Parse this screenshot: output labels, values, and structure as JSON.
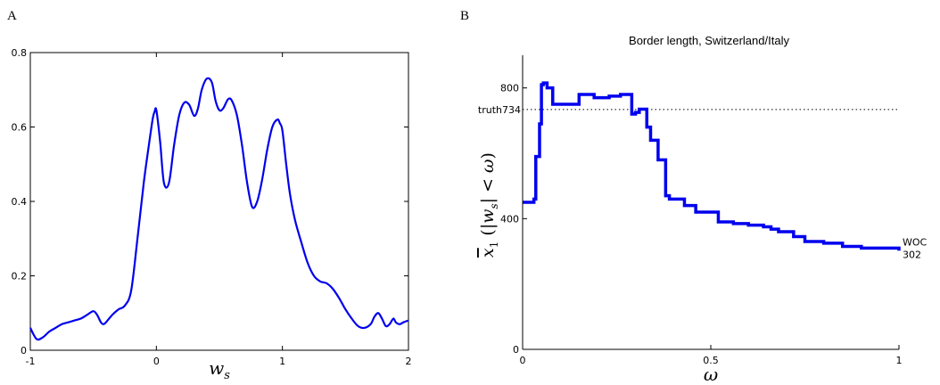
{
  "panel_letters": [
    "A",
    "B"
  ],
  "chart_data": [
    {
      "type": "line",
      "panel": "A",
      "title": "",
      "xlabel": "w_s",
      "ylabel": "",
      "xlim": [
        -1,
        2
      ],
      "ylim": [
        0,
        0.8
      ],
      "xticks": [
        "-1",
        "0",
        "1",
        "2"
      ],
      "yticks": [
        "0",
        "0.2",
        "0.4",
        "0.6",
        "0.8"
      ],
      "series": [
        {
          "color": "#0000ee",
          "x": [
            -1.0,
            -0.95,
            -0.9,
            -0.85,
            -0.8,
            -0.75,
            -0.7,
            -0.65,
            -0.6,
            -0.55,
            -0.5,
            -0.47,
            -0.44,
            -0.42,
            -0.4,
            -0.35,
            -0.3,
            -0.25,
            -0.2,
            -0.15,
            -0.1,
            -0.06,
            -0.03,
            -0.015,
            0.0,
            0.03,
            0.06,
            0.1,
            0.14,
            0.18,
            0.22,
            0.26,
            0.3,
            0.33,
            0.36,
            0.4,
            0.44,
            0.47,
            0.5,
            0.53,
            0.57,
            0.6,
            0.64,
            0.68,
            0.72,
            0.76,
            0.8,
            0.84,
            0.88,
            0.92,
            0.96,
            0.98,
            1.0,
            1.03,
            1.06,
            1.1,
            1.15,
            1.2,
            1.25,
            1.3,
            1.35,
            1.4,
            1.45,
            1.5,
            1.55,
            1.6,
            1.65,
            1.7,
            1.73,
            1.76,
            1.79,
            1.82,
            1.85,
            1.88,
            1.9,
            1.93,
            1.96,
            2.0
          ],
          "y": [
            0.06,
            0.03,
            0.035,
            0.05,
            0.06,
            0.07,
            0.075,
            0.08,
            0.085,
            0.095,
            0.105,
            0.095,
            0.075,
            0.07,
            0.075,
            0.095,
            0.11,
            0.12,
            0.16,
            0.3,
            0.45,
            0.55,
            0.62,
            0.64,
            0.645,
            0.56,
            0.45,
            0.45,
            0.55,
            0.63,
            0.665,
            0.66,
            0.63,
            0.65,
            0.7,
            0.73,
            0.72,
            0.67,
            0.645,
            0.65,
            0.675,
            0.67,
            0.63,
            0.55,
            0.45,
            0.385,
            0.4,
            0.46,
            0.54,
            0.6,
            0.62,
            0.61,
            0.59,
            0.5,
            0.42,
            0.35,
            0.29,
            0.235,
            0.2,
            0.185,
            0.18,
            0.165,
            0.14,
            0.11,
            0.085,
            0.065,
            0.06,
            0.07,
            0.09,
            0.1,
            0.085,
            0.065,
            0.07,
            0.085,
            0.075,
            0.07,
            0.075,
            0.08
          ]
        }
      ]
    },
    {
      "type": "line",
      "panel": "B",
      "title": "Border length, Switzerland/Italy",
      "xlabel": "ω",
      "ylabel": "x̄₁ (|w_s| < ω)",
      "xlim": [
        0,
        1
      ],
      "ylim": [
        0,
        900
      ],
      "xticks": [
        "0",
        "0.5",
        "1"
      ],
      "yticks": [
        "0",
        "400",
        "800"
      ],
      "reference_line": {
        "label": "truth734",
        "value": 734
      },
      "end_annotation": {
        "label": "WOC",
        "value_label": "302"
      },
      "series": [
        {
          "color": "#0000ee",
          "step": true,
          "x": [
            0.0,
            0.03,
            0.035,
            0.045,
            0.05,
            0.055,
            0.065,
            0.08,
            0.11,
            0.15,
            0.16,
            0.19,
            0.23,
            0.26,
            0.29,
            0.3,
            0.31,
            0.33,
            0.34,
            0.36,
            0.38,
            0.39,
            0.43,
            0.46,
            0.5,
            0.52,
            0.56,
            0.6,
            0.64,
            0.66,
            0.68,
            0.72,
            0.75,
            0.8,
            0.85,
            0.9,
            0.95,
            1.0
          ],
          "y": [
            450,
            460,
            590,
            690,
            810,
            815,
            800,
            750,
            750,
            780,
            780,
            770,
            775,
            780,
            720,
            725,
            735,
            680,
            640,
            580,
            470,
            460,
            440,
            420,
            420,
            390,
            385,
            380,
            375,
            368,
            360,
            345,
            330,
            325,
            315,
            310,
            310,
            302
          ]
        }
      ]
    }
  ]
}
